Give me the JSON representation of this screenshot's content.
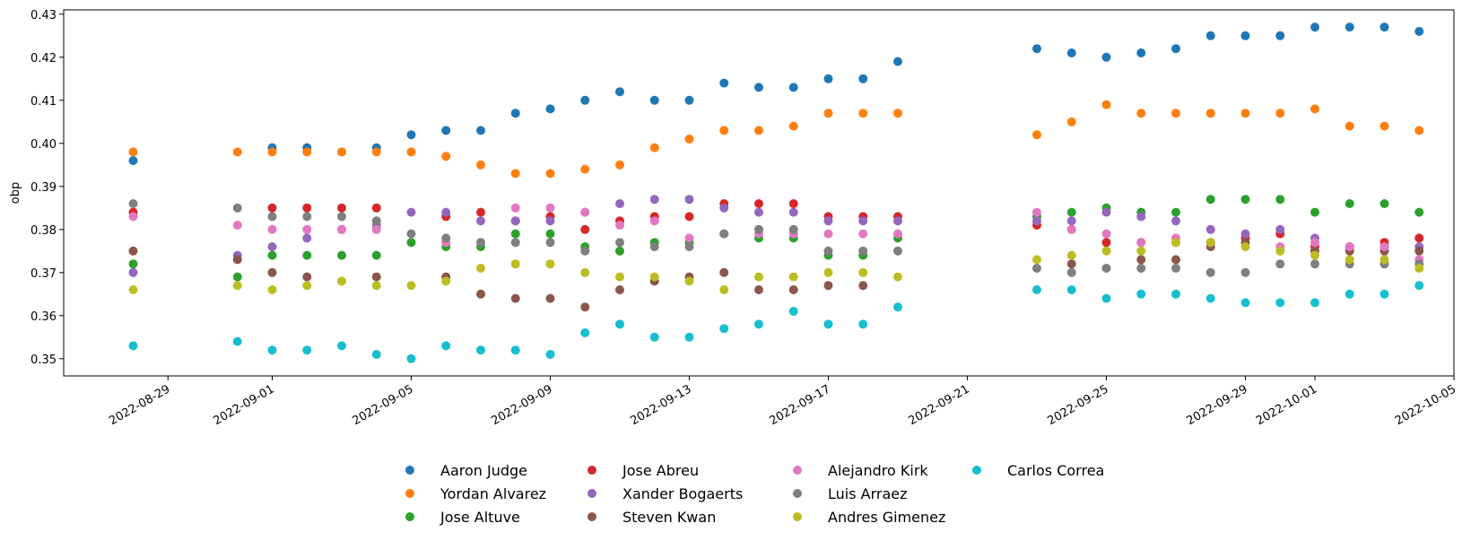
{
  "chart_data": {
    "type": "scatter",
    "title": "",
    "xlabel": "",
    "ylabel": "obp",
    "ylim": [
      0.346,
      0.431
    ],
    "xlim": [
      "2022-08-26",
      "2022-10-05"
    ],
    "yticks": [
      0.35,
      0.36,
      0.37,
      0.38,
      0.39,
      0.4,
      0.41,
      0.42,
      0.43
    ],
    "ytick_labels": [
      "0.35",
      "0.36",
      "0.37",
      "0.38",
      "0.39",
      "0.40",
      "0.41",
      "0.42",
      "0.43"
    ],
    "xticks": [
      "2022-08-29",
      "2022-09-01",
      "2022-09-05",
      "2022-09-09",
      "2022-09-13",
      "2022-09-17",
      "2022-09-21",
      "2022-09-25",
      "2022-09-29",
      "2022-10-01",
      "2022-10-05"
    ],
    "grid": false,
    "legend_position": "bottom-center",
    "x": [
      "2022-08-28",
      "2022-08-31",
      "2022-09-01",
      "2022-09-02",
      "2022-09-03",
      "2022-09-04",
      "2022-09-05",
      "2022-09-06",
      "2022-09-07",
      "2022-09-08",
      "2022-09-09",
      "2022-09-10",
      "2022-09-11",
      "2022-09-12",
      "2022-09-13",
      "2022-09-14",
      "2022-09-15",
      "2022-09-16",
      "2022-09-17",
      "2022-09-18",
      "2022-09-19",
      "2022-09-23",
      "2022-09-24",
      "2022-09-25",
      "2022-09-26",
      "2022-09-27",
      "2022-09-28",
      "2022-09-29",
      "2022-09-30",
      "2022-10-01",
      "2022-10-02",
      "2022-10-03",
      "2022-10-04"
    ],
    "series": [
      {
        "name": "Aaron Judge",
        "color": "#1f77b4",
        "values": [
          0.396,
          null,
          0.399,
          0.399,
          0.398,
          0.399,
          0.402,
          0.403,
          0.403,
          0.407,
          0.408,
          0.41,
          0.412,
          0.41,
          0.41,
          0.414,
          0.413,
          0.413,
          0.415,
          0.415,
          0.419,
          0.422,
          0.421,
          0.42,
          0.421,
          0.422,
          0.425,
          0.425,
          0.425,
          0.427,
          0.427,
          0.427,
          0.426
        ]
      },
      {
        "name": "Yordan Alvarez",
        "color": "#ff7f0e",
        "values": [
          0.398,
          0.398,
          0.398,
          0.398,
          0.398,
          0.398,
          0.398,
          0.397,
          0.395,
          0.393,
          0.393,
          0.394,
          0.395,
          0.399,
          0.401,
          0.403,
          0.403,
          0.404,
          0.407,
          0.407,
          0.407,
          0.402,
          0.405,
          0.409,
          0.407,
          0.407,
          0.407,
          0.407,
          0.407,
          0.408,
          0.404,
          0.404,
          0.403
        ]
      },
      {
        "name": "Jose Altuve",
        "color": "#2ca02c",
        "values": [
          0.372,
          0.369,
          0.374,
          0.374,
          0.374,
          0.374,
          0.377,
          0.376,
          0.376,
          0.379,
          0.379,
          0.376,
          0.375,
          0.377,
          0.377,
          0.379,
          0.378,
          0.378,
          0.374,
          0.374,
          0.378,
          0.383,
          0.384,
          0.385,
          0.384,
          0.384,
          0.387,
          0.387,
          0.387,
          0.384,
          0.386,
          0.386,
          0.384
        ]
      },
      {
        "name": "Jose Abreu",
        "color": "#d62728",
        "values": [
          0.384,
          null,
          0.385,
          0.385,
          0.385,
          0.385,
          null,
          0.383,
          0.384,
          0.382,
          0.383,
          0.38,
          0.382,
          0.383,
          0.383,
          0.386,
          0.386,
          0.386,
          0.383,
          0.383,
          0.383,
          0.381,
          0.38,
          0.377,
          0.377,
          0.377,
          0.377,
          0.378,
          0.379,
          0.376,
          0.376,
          0.377,
          0.378
        ]
      },
      {
        "name": "Xander Bogaerts",
        "color": "#9467bd",
        "values": [
          0.37,
          0.374,
          0.376,
          0.378,
          0.38,
          0.381,
          0.384,
          0.384,
          0.382,
          0.382,
          0.382,
          0.384,
          0.386,
          0.387,
          0.387,
          0.385,
          0.384,
          0.384,
          0.382,
          0.382,
          0.382,
          0.382,
          0.382,
          0.384,
          0.383,
          0.382,
          0.38,
          0.379,
          0.38,
          0.378,
          0.376,
          0.376,
          0.376
        ]
      },
      {
        "name": "Steven Kwan",
        "color": "#8c564b",
        "values": [
          0.375,
          0.373,
          0.37,
          0.369,
          null,
          0.369,
          null,
          0.369,
          0.365,
          0.364,
          0.364,
          0.362,
          0.366,
          0.368,
          0.369,
          0.37,
          0.366,
          0.366,
          0.367,
          0.367,
          null,
          null,
          0.372,
          null,
          0.373,
          0.373,
          0.376,
          0.377,
          null,
          0.375,
          0.375,
          0.375,
          0.375
        ]
      },
      {
        "name": "Alejandro Kirk",
        "color": "#e377c2",
        "values": [
          0.383,
          0.381,
          0.38,
          0.38,
          0.38,
          0.38,
          null,
          0.377,
          null,
          0.385,
          0.385,
          0.384,
          0.381,
          0.382,
          0.378,
          null,
          0.379,
          0.379,
          0.379,
          0.379,
          0.379,
          0.384,
          0.38,
          0.379,
          0.377,
          0.378,
          null,
          null,
          0.376,
          0.377,
          0.376,
          0.376,
          0.373
        ]
      },
      {
        "name": "Luis Arraez",
        "color": "#7f7f7f",
        "values": [
          0.386,
          0.385,
          0.383,
          0.383,
          0.383,
          0.382,
          0.379,
          0.378,
          0.377,
          0.377,
          0.377,
          0.375,
          0.377,
          0.376,
          0.376,
          0.379,
          0.38,
          0.38,
          0.375,
          0.375,
          0.375,
          0.371,
          0.37,
          0.371,
          0.371,
          0.371,
          0.37,
          0.37,
          0.372,
          0.372,
          0.372,
          0.372,
          0.372
        ]
      },
      {
        "name": "Andres Gimenez",
        "color": "#bcbd22",
        "values": [
          0.366,
          0.367,
          0.366,
          0.367,
          0.368,
          0.367,
          0.367,
          0.368,
          0.371,
          0.372,
          0.372,
          0.37,
          0.369,
          0.369,
          0.368,
          0.366,
          0.369,
          0.369,
          0.37,
          0.37,
          0.369,
          0.373,
          0.374,
          0.375,
          0.375,
          0.377,
          0.377,
          0.376,
          0.375,
          0.374,
          0.373,
          0.373,
          0.371
        ]
      },
      {
        "name": "Carlos Correa",
        "color": "#17becf",
        "values": [
          0.353,
          0.354,
          0.352,
          0.352,
          0.353,
          0.351,
          0.35,
          0.353,
          0.352,
          0.352,
          0.351,
          0.356,
          0.358,
          0.355,
          0.355,
          0.357,
          0.358,
          0.361,
          0.358,
          0.358,
          0.362,
          0.366,
          0.366,
          0.364,
          0.365,
          0.365,
          0.364,
          0.363,
          0.363,
          0.363,
          0.365,
          0.365,
          0.367
        ]
      }
    ]
  }
}
